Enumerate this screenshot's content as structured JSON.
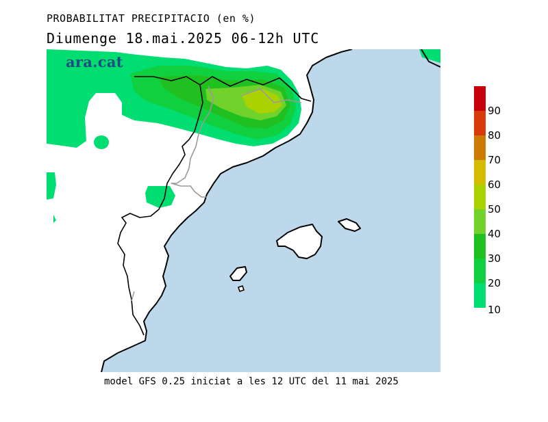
{
  "header": {
    "title": "PROBABILITAT PRECIPITACIO (en %)",
    "subtitle": "Diumenge  18.mai.2025 06-12h UTC"
  },
  "brand": {
    "logo_text": "ara.cat"
  },
  "footer": {
    "model_text": "model GFS 0.25 iniciat a les 12 UTC del 11 mai 2025"
  },
  "legend": {
    "labels": [
      "90",
      "80",
      "70",
      "60",
      "50",
      "40",
      "30",
      "20",
      "10"
    ],
    "colors": {
      "90-100": "#c8000a",
      "80-90": "#d83a0a",
      "70-80": "#cc7a00",
      "60-70": "#d2bb00",
      "50-60": "#aad200",
      "40-50": "#70d22a",
      "30-40": "#20c020",
      "20-30": "#10d040",
      "10-20": "#00de72"
    }
  },
  "map_colors": {
    "sea": "#bcd8ea",
    "land": "#ffffff",
    "coast": "#000000",
    "border": "#aaaaaa"
  }
}
